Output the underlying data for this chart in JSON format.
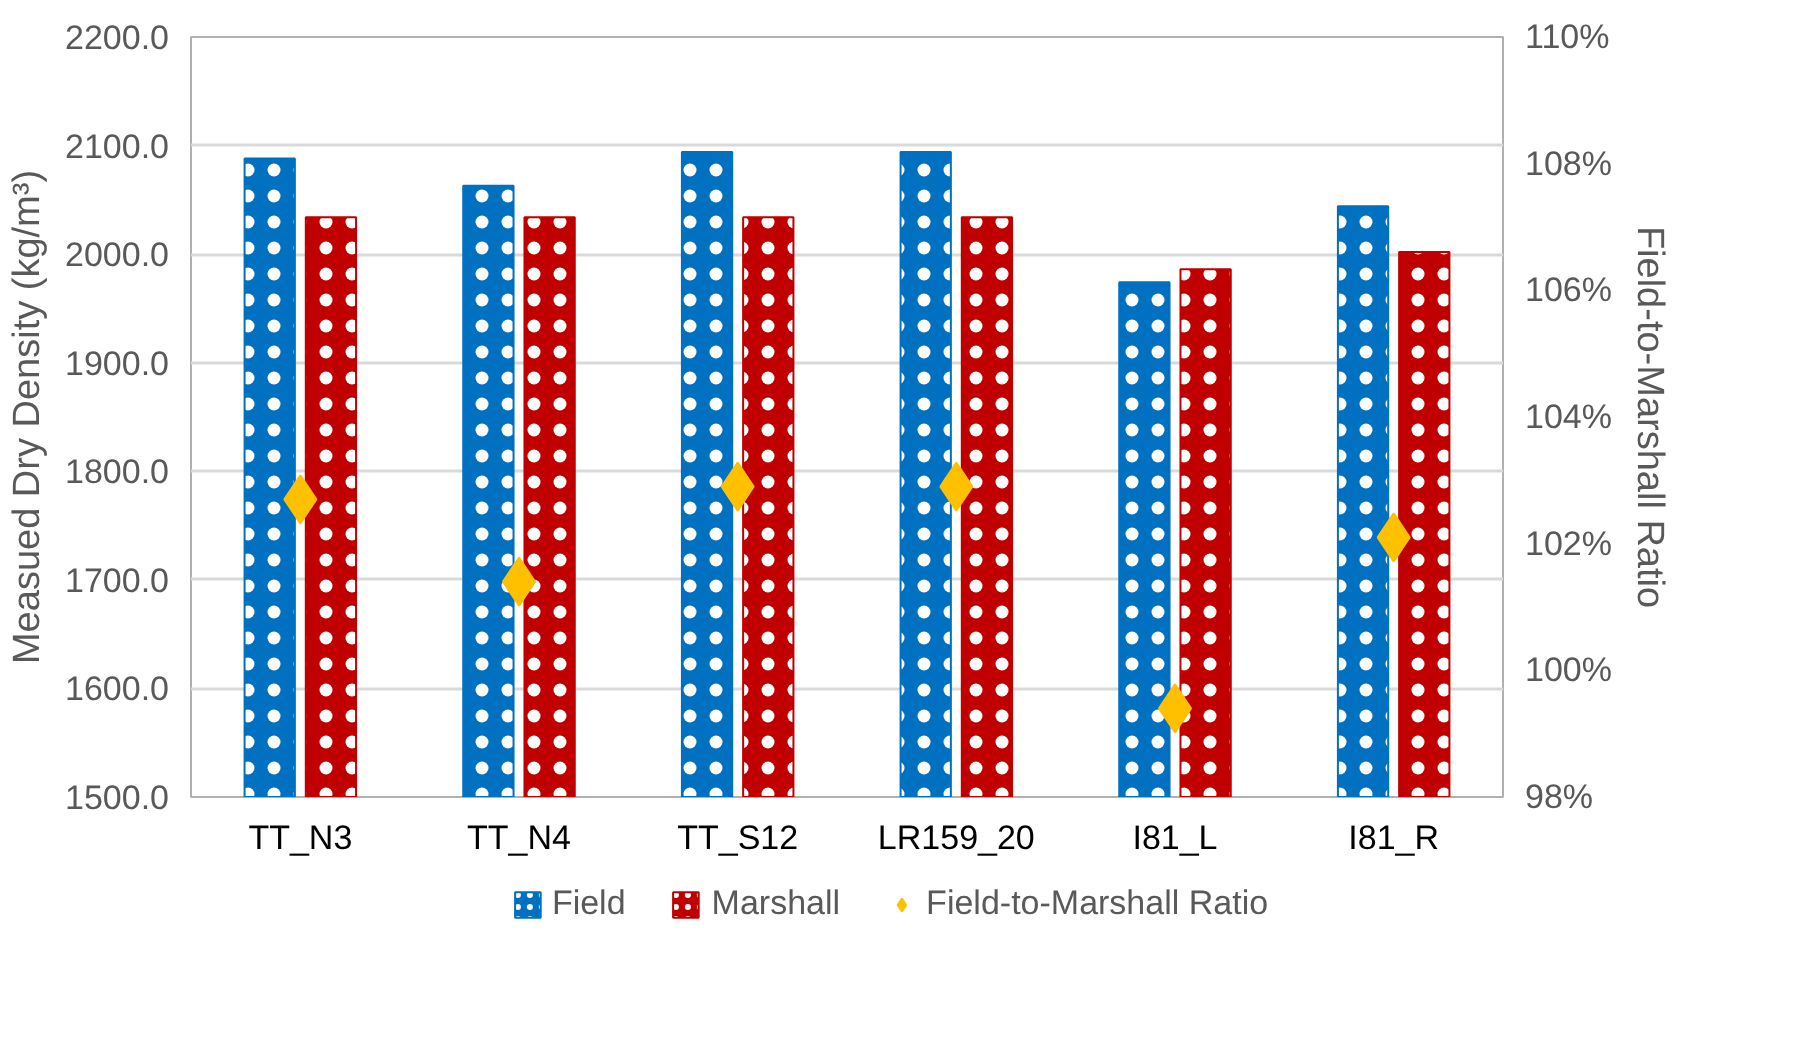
{
  "chart_data": {
    "type": "bar",
    "categories": [
      "TT_N3",
      "TT_N4",
      "TT_S12",
      "LR159_20",
      "I81_L",
      "I81_R"
    ],
    "ylabel": "Measued Dry Density (kg/m³)",
    "y2label": "Field-to-Marshall Ratio",
    "series": [
      {
        "name": "Field",
        "color": "#0070c0",
        "values": [
          2088,
          2063,
          2094,
          2094,
          1974,
          2044
        ]
      },
      {
        "name": "Marshall",
        "color": "#c00000",
        "values": [
          2034,
          2034,
          2034,
          2034,
          1986,
          2002
        ]
      },
      {
        "name": "Field-to-Marshall Ratio",
        "type": "scatter",
        "axis": "y2",
        "marker": "diamond",
        "color": "#ffc000",
        "values": [
          102.7,
          101.4,
          102.9,
          102.9,
          99.4,
          102.1
        ]
      }
    ],
    "ylim": [
      1500,
      2200
    ],
    "yticks": [
      {
        "value": 1500,
        "label": "1500.0"
      },
      {
        "value": 1600,
        "label": "1600.0"
      },
      {
        "value": 1700,
        "label": "1700.0"
      },
      {
        "value": 1800,
        "label": "1800.0"
      },
      {
        "value": 1900,
        "label": "1900.0"
      },
      {
        "value": 2000,
        "label": "2000.0"
      },
      {
        "value": 2100,
        "label": "2100.0"
      },
      {
        "value": 2200,
        "label": "2200.0"
      }
    ],
    "y2lim": [
      98,
      110
    ],
    "y2ticks": [
      {
        "value": 98,
        "label": "98%"
      },
      {
        "value": 100,
        "label": "100%"
      },
      {
        "value": 102,
        "label": "102%"
      },
      {
        "value": 104,
        "label": "104%"
      },
      {
        "value": 106,
        "label": "106%"
      },
      {
        "value": 108,
        "label": "108%"
      },
      {
        "value": 110,
        "label": "110%"
      }
    ],
    "grid": "y",
    "legend": "bottom"
  }
}
